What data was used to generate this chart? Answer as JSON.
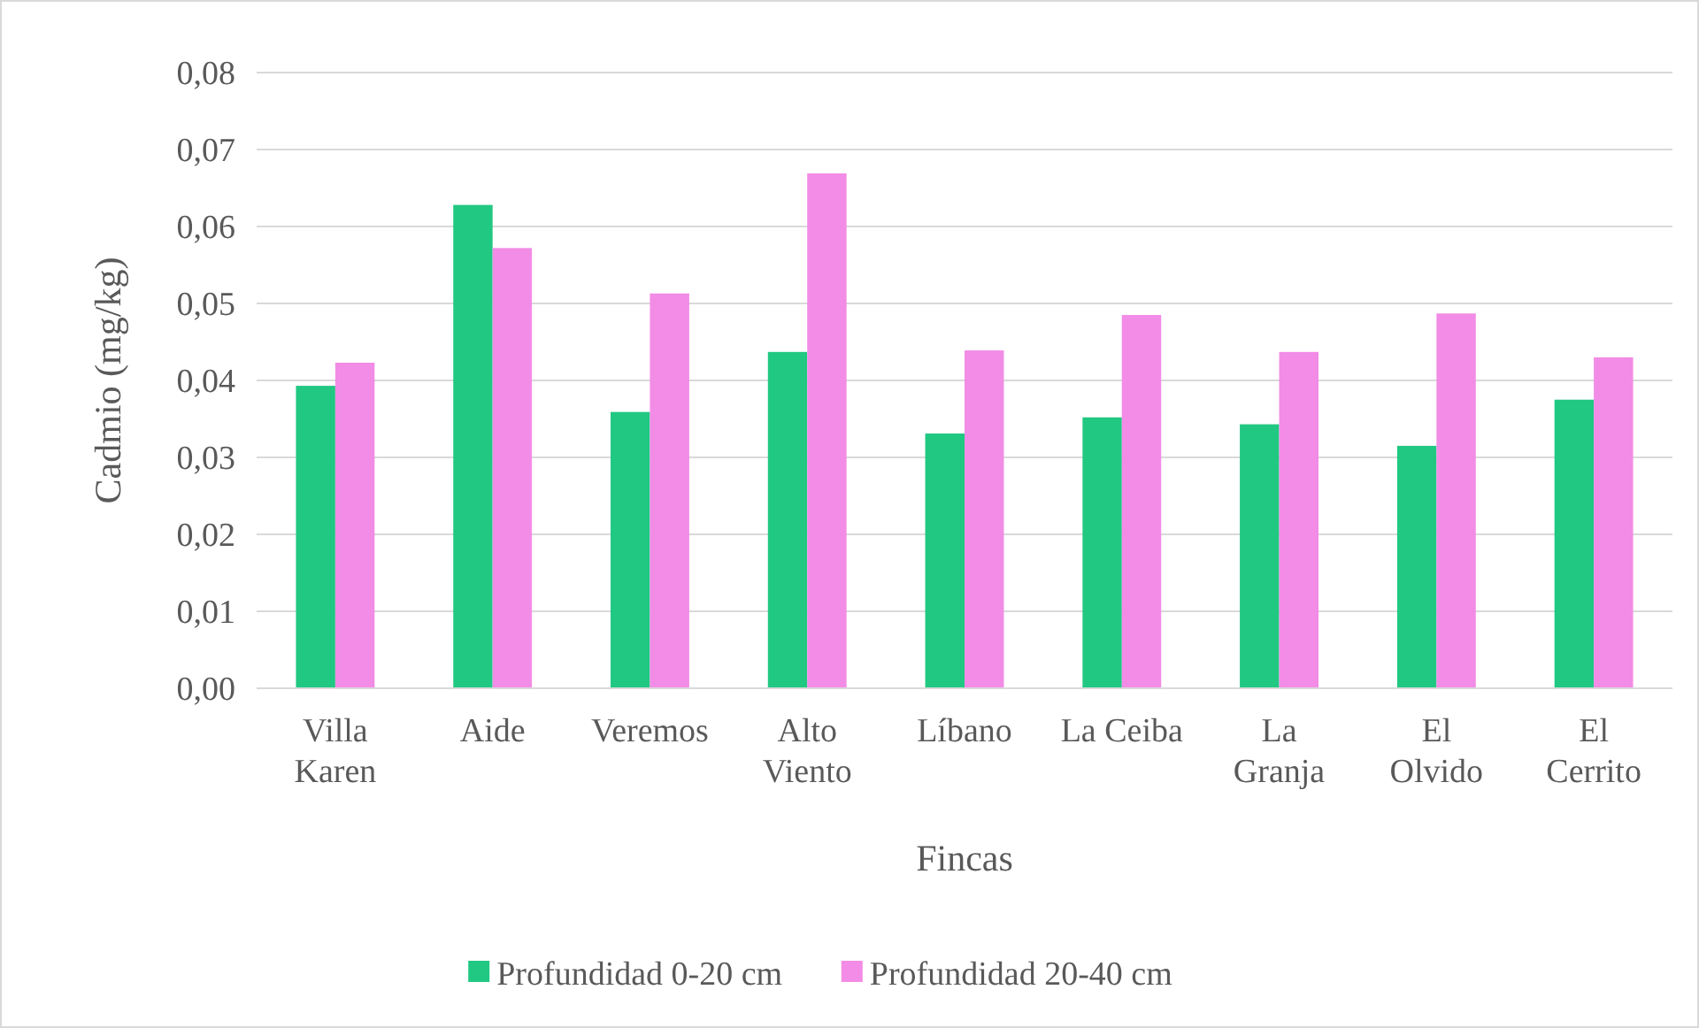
{
  "chart_data": {
    "type": "bar",
    "xlabel": "Fincas",
    "ylabel": "Cadmio (mg/kg)",
    "categories": [
      "Villa\nKaren",
      "Aide",
      "Veremos",
      "Alto\nViento",
      "Líbano",
      "La Ceiba",
      "La\nGranja",
      "El\nOlvido",
      "El\nCerrito"
    ],
    "series": [
      {
        "name": "Profundidad 0-20 cm",
        "color": "#21c882",
        "values": [
          0.0393,
          0.0628,
          0.0359,
          0.0437,
          0.0331,
          0.0352,
          0.0343,
          0.0315,
          0.0375
        ]
      },
      {
        "name": "Profundidad 20-40 cm",
        "color": "#f28ce6",
        "values": [
          0.0423,
          0.0572,
          0.0513,
          0.0669,
          0.0439,
          0.0485,
          0.0437,
          0.0487,
          0.043
        ]
      }
    ],
    "ylim": [
      0,
      0.08
    ],
    "yticks": [
      {
        "value": 0,
        "label": "0,00"
      },
      {
        "value": 0.01,
        "label": "0,01"
      },
      {
        "value": 0.02,
        "label": "0,02"
      },
      {
        "value": 0.03,
        "label": "0,03"
      },
      {
        "value": 0.04,
        "label": "0,04"
      },
      {
        "value": 0.05,
        "label": "0,05"
      },
      {
        "value": 0.06,
        "label": "0,06"
      },
      {
        "value": 0.07,
        "label": "0,07"
      },
      {
        "value": 0.08,
        "label": "0,08"
      }
    ],
    "grid": "y",
    "legend": "bottom"
  }
}
